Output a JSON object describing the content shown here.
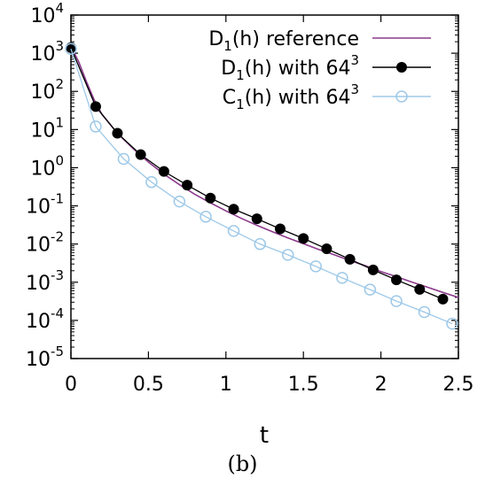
{
  "chart_data": {
    "type": "line",
    "xlabel": "t",
    "ylabel": "",
    "xlim": [
      0,
      2.5
    ],
    "ylim": [
      1e-05,
      10000.0
    ],
    "yscale": "log",
    "grid": false,
    "legend_position": "top-right",
    "x_ticks": [
      0,
      0.5,
      1,
      1.5,
      2,
      2.5
    ],
    "x_tick_labels": [
      "0",
      "0.5",
      "1",
      "1.5",
      "2",
      "2.5"
    ],
    "y_ticks": [
      1e-05,
      0.0001,
      0.001,
      0.01,
      0.1,
      1.0,
      10.0,
      100.0,
      1000.0,
      10000.0
    ],
    "y_tick_labels": [
      {
        "base": "10",
        "exp": "-5"
      },
      {
        "base": "10",
        "exp": "-4"
      },
      {
        "base": "10",
        "exp": "-3"
      },
      {
        "base": "10",
        "exp": "-2"
      },
      {
        "base": "10",
        "exp": "-1"
      },
      {
        "base": "10",
        "exp": "0"
      },
      {
        "base": "10",
        "exp": "1"
      },
      {
        "base": "10",
        "exp": "2"
      },
      {
        "base": "10",
        "exp": "3"
      },
      {
        "base": "10",
        "exp": "4"
      }
    ],
    "series": [
      {
        "name": {
          "main": "D",
          "sub": "1",
          "rest": "(h) reference",
          "sup": ""
        },
        "style": "line",
        "color": "#8b3a8b",
        "x": [
          0,
          0.05,
          0.1,
          0.15,
          0.2,
          0.3,
          0.4,
          0.5,
          0.6,
          0.7,
          0.8,
          0.9,
          1.0,
          1.1,
          1.2,
          1.3,
          1.4,
          1.5,
          1.6,
          1.7,
          1.8,
          1.9,
          2.0,
          2.1,
          2.2,
          2.3,
          2.4,
          2.5
        ],
        "y": [
          1500,
          600,
          180,
          60,
          25,
          8,
          3.2,
          1.4,
          0.68,
          0.36,
          0.2,
          0.12,
          0.074,
          0.047,
          0.031,
          0.021,
          0.0145,
          0.0102,
          0.0072,
          0.0052,
          0.0037,
          0.0027,
          0.0019,
          0.0014,
          0.00101,
          0.00074,
          0.00054,
          0.0004
        ]
      },
      {
        "name": {
          "main": "D",
          "sub": "1",
          "rest": "(h) with 64",
          "sup": "3"
        },
        "style": "line-filled-circle",
        "color": "#000000",
        "x": [
          0,
          0.16,
          0.3,
          0.45,
          0.6,
          0.75,
          0.9,
          1.05,
          1.2,
          1.35,
          1.5,
          1.65,
          1.8,
          1.95,
          2.1,
          2.25,
          2.4
        ],
        "y": [
          1400,
          40,
          8,
          2.2,
          0.8,
          0.35,
          0.16,
          0.082,
          0.046,
          0.025,
          0.014,
          0.0075,
          0.004,
          0.0021,
          0.00115,
          0.00065,
          0.00036
        ]
      },
      {
        "name": {
          "main": "C",
          "sub": "1",
          "rest": "(h) with 64",
          "sup": "3"
        },
        "style": "line-open-circle",
        "color": "#9ec9e8",
        "x": [
          0,
          0.16,
          0.34,
          0.52,
          0.7,
          0.87,
          1.05,
          1.22,
          1.4,
          1.58,
          1.75,
          1.93,
          2.1,
          2.28,
          2.46
        ],
        "y": [
          1300,
          12,
          1.7,
          0.42,
          0.13,
          0.052,
          0.022,
          0.01,
          0.0052,
          0.0026,
          0.0013,
          0.00064,
          0.00032,
          0.000165,
          8.2e-05
        ]
      }
    ]
  },
  "caption": "(b)"
}
